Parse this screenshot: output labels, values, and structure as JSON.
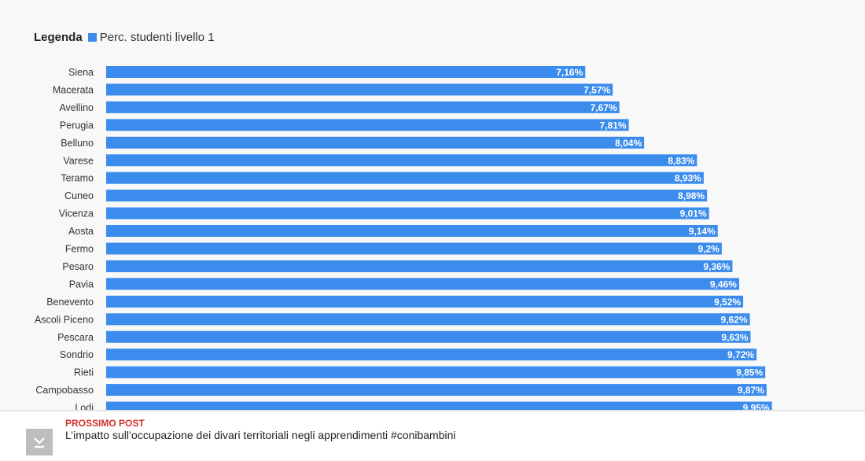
{
  "legend": {
    "title": "Legenda",
    "label": "Perc. studenti livello 1",
    "color": "#3b8ced"
  },
  "chart_data": {
    "type": "bar",
    "orientation": "horizontal",
    "categories": [
      "Siena",
      "Macerata",
      "Avellino",
      "Perugia",
      "Belluno",
      "Varese",
      "Teramo",
      "Cuneo",
      "Vicenza",
      "Aosta",
      "Fermo",
      "Pesaro",
      "Pavia",
      "Benevento",
      "Ascoli Piceno",
      "Pescara",
      "Sondrio",
      "Rieti",
      "Campobasso",
      "Lodi"
    ],
    "series": [
      {
        "name": "Perc. studenti livello 1",
        "color": "#3b8ced",
        "values": [
          7.16,
          7.57,
          7.67,
          7.81,
          8.04,
          8.83,
          8.93,
          8.98,
          9.01,
          9.14,
          9.2,
          9.36,
          9.46,
          9.52,
          9.62,
          9.63,
          9.72,
          9.85,
          9.87,
          9.95
        ],
        "value_labels": [
          "7,16%",
          "7,57%",
          "7,67%",
          "7,81%",
          "8,04%",
          "8,83%",
          "8,93%",
          "8,98%",
          "9,01%",
          "9,14%",
          "9,2%",
          "9,36%",
          "9,46%",
          "9,52%",
          "9,62%",
          "9,63%",
          "9,72%",
          "9,85%",
          "9,87%",
          "9,95%"
        ]
      }
    ],
    "xlim": [
      0,
      11
    ],
    "grid": false,
    "legend_position": "top-left"
  },
  "next_post": {
    "kicker": "PROSSIMO POST",
    "title": "L’impatto sull’occupazione dei divari territoriali negli apprendimenti #conibambini",
    "icon": "arrow-down-to-line-icon"
  }
}
